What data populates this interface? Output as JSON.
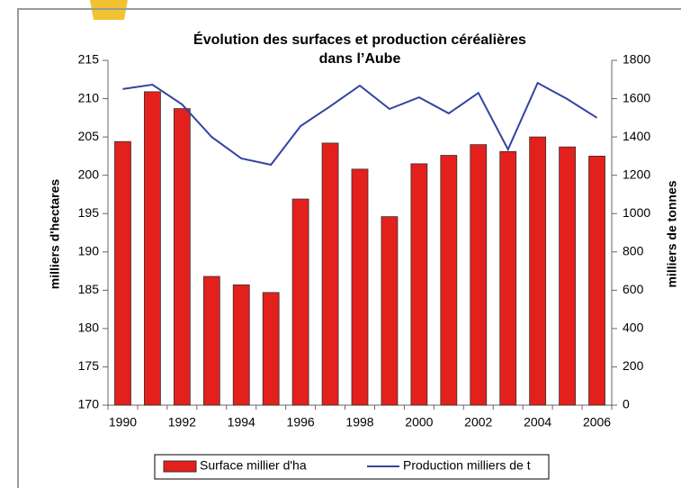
{
  "chart_data": {
    "type": "bar",
    "title": [
      "Évolution des surfaces et production céréalières",
      "dans l’Aube"
    ],
    "categories": [
      "1990",
      null,
      "1992",
      null,
      "1994",
      null,
      "1996",
      null,
      "1998",
      null,
      "2000",
      null,
      "2002",
      null,
      "2004",
      null,
      "2006"
    ],
    "series": [
      {
        "name": "Surface millier d'ha",
        "type": "bar",
        "color": "#e3201c",
        "values": [
          204.4,
          210.9,
          208.7,
          186.8,
          185.7,
          184.7,
          196.9,
          204.2,
          200.8,
          194.6,
          201.5,
          202.6,
          204.0,
          203.1,
          205.0,
          203.7,
          202.5
        ]
      },
      {
        "name": "Production milliers de t",
        "type": "line",
        "axis": "y2",
        "color": "#3344a0",
        "values": [
          1650,
          1673,
          1570,
          1400,
          1288,
          1255,
          1457,
          1560,
          1668,
          1546,
          1607,
          1523,
          1630,
          1335,
          1682,
          1598,
          1500
        ]
      }
    ],
    "ylabel": "milliers d'hectares",
    "y2label": "milliers de tonnes",
    "ylim": [
      170,
      215
    ],
    "yticks": [
      170,
      175,
      180,
      185,
      190,
      195,
      200,
      205,
      210,
      215
    ],
    "y2lim": [
      0,
      1800
    ],
    "y2ticks": [
      0,
      200,
      400,
      600,
      800,
      1000,
      1200,
      1400,
      1600,
      1800
    ],
    "grid": false,
    "legend": "bottom"
  }
}
